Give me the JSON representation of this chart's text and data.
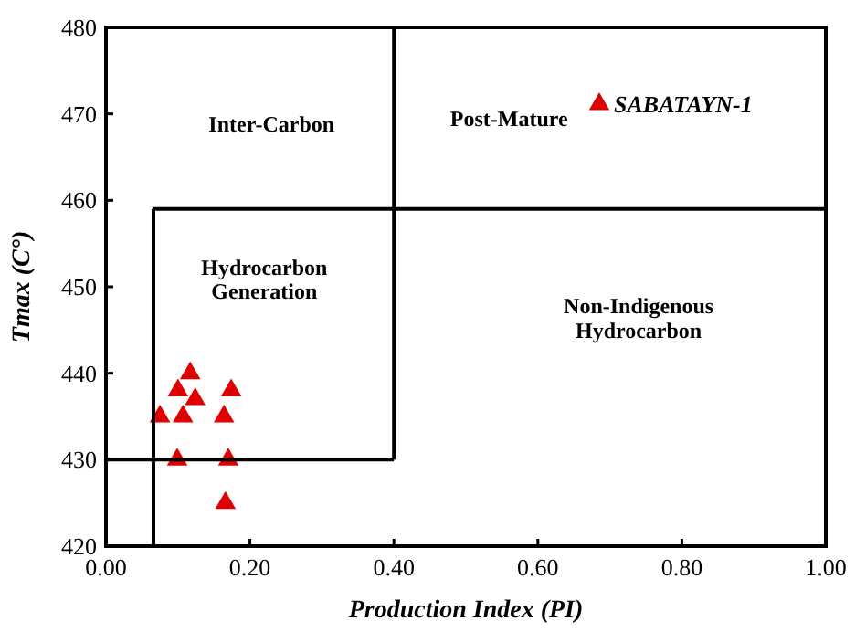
{
  "chart_data": {
    "type": "scatter",
    "xlabel": "Production Index (PI)",
    "ylabel": "Tmax (C°)",
    "xlim": [
      0,
      1
    ],
    "ylim": [
      420,
      480
    ],
    "xticks": [
      {
        "value": 0,
        "label": "0.00"
      },
      {
        "value": 0.2,
        "label": "0.20"
      },
      {
        "value": 0.4,
        "label": "0.40"
      },
      {
        "value": 0.6,
        "label": "0.60"
      },
      {
        "value": 0.8,
        "label": "0.80"
      },
      {
        "value": 1,
        "label": "1.00"
      }
    ],
    "yticks": [
      420,
      430,
      440,
      450,
      460,
      470,
      480
    ],
    "legend": "top right",
    "grid": false,
    "series": [
      {
        "name": "SABATAYN-1",
        "color": "#e00000",
        "marker": "triangle",
        "x": [
          0.075,
          0.1,
          0.117,
          0.124,
          0.107,
          0.099,
          0.164,
          0.17,
          0.166,
          0.174
        ],
        "values": [
          435,
          438,
          440,
          437,
          435,
          430,
          435,
          430,
          425,
          438
        ]
      },
      {
        "type": "line",
        "color": "#000000",
        "x": [
          0.066,
          0.066
        ],
        "values": [
          420,
          459
        ]
      },
      {
        "type": "line",
        "color": "#000000",
        "x": [
          0.066,
          1
        ],
        "values": [
          459,
          459
        ]
      },
      {
        "type": "line",
        "color": "#000000",
        "x": [
          0.4,
          0.4
        ],
        "values": [
          430,
          480
        ]
      },
      {
        "type": "line",
        "color": "#000000",
        "x": [
          0,
          0.4
        ],
        "values": [
          430,
          430
        ]
      }
    ],
    "annotations": [
      "Inter-Carbon",
      "Post-Mature",
      "Hydrocarbon\nGeneration",
      "Non-Indigenous\nHydrocarbon"
    ]
  }
}
